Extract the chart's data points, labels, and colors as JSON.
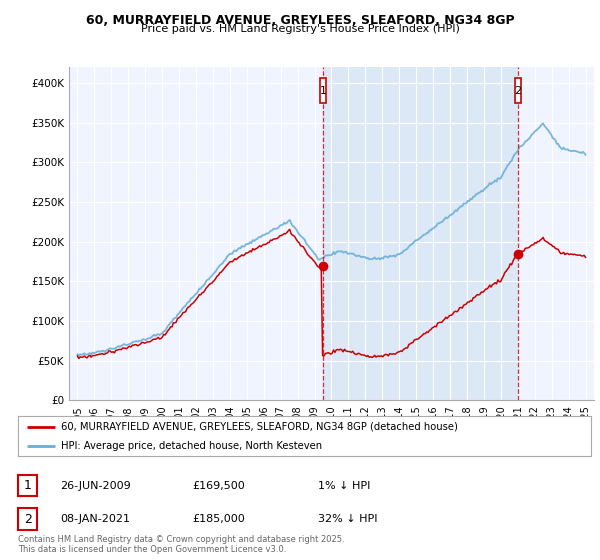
{
  "title": "60, MURRAYFIELD AVENUE, GREYLEES, SLEAFORD, NG34 8GP",
  "subtitle": "Price paid vs. HM Land Registry's House Price Index (HPI)",
  "legend_label_red": "60, MURRAYFIELD AVENUE, GREYLEES, SLEAFORD, NG34 8GP (detached house)",
  "legend_label_blue": "HPI: Average price, detached house, North Kesteven",
  "footnote": "Contains HM Land Registry data © Crown copyright and database right 2025.\nThis data is licensed under the Open Government Licence v3.0.",
  "sale1_label": "1",
  "sale1_date": "26-JUN-2009",
  "sale1_price": "£169,500",
  "sale1_hpi": "1% ↓ HPI",
  "sale2_label": "2",
  "sale2_date": "08-JAN-2021",
  "sale2_price": "£185,000",
  "sale2_hpi": "32% ↓ HPI",
  "sale1_x": 2009.49,
  "sale1_y": 169500,
  "sale2_x": 2021.02,
  "sale2_y": 185000,
  "ylim": [
    0,
    420000
  ],
  "xlim": [
    1994.5,
    2025.5
  ],
  "yticks": [
    0,
    50000,
    100000,
    150000,
    200000,
    250000,
    300000,
    350000,
    400000
  ],
  "ytick_labels": [
    "£0",
    "£50K",
    "£100K",
    "£150K",
    "£200K",
    "£250K",
    "£300K",
    "£350K",
    "£400K"
  ],
  "xticks": [
    1995,
    1996,
    1997,
    1998,
    1999,
    2000,
    2001,
    2002,
    2003,
    2004,
    2005,
    2006,
    2007,
    2008,
    2009,
    2010,
    2011,
    2012,
    2013,
    2014,
    2015,
    2016,
    2017,
    2018,
    2019,
    2020,
    2021,
    2022,
    2023,
    2024,
    2025
  ],
  "hpi_color": "#6baed6",
  "price_color": "#cc0000",
  "bg_color": "#f5f8ff",
  "plot_bg_color": "#f0f4ff",
  "shaded_color": "#dce8f5",
  "grid_color": "#cccccc",
  "sale_marker_color": "#cc0000",
  "vline_color": "#cc0000"
}
